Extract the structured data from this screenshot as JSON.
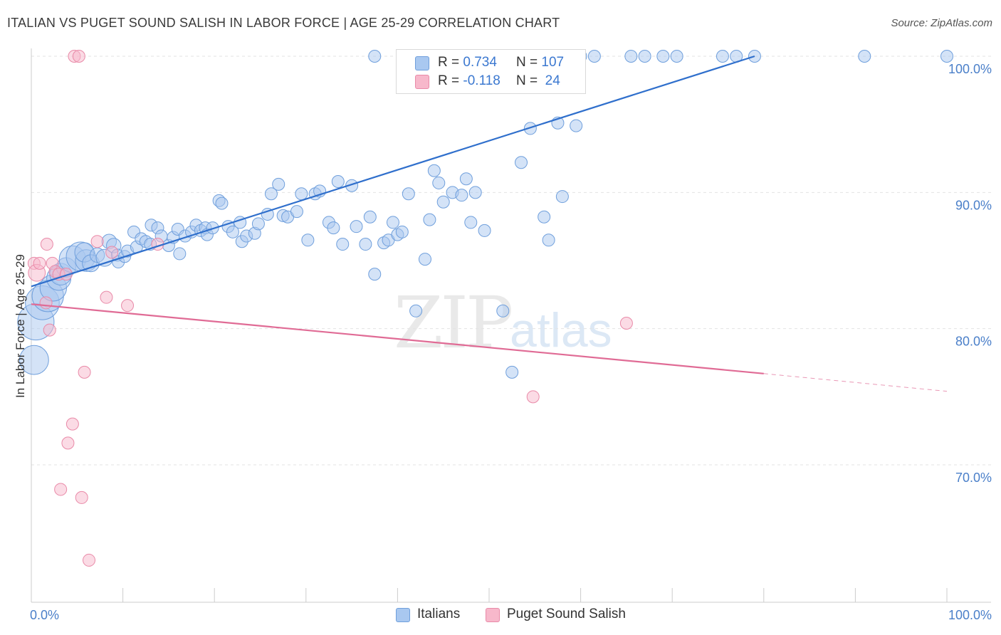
{
  "title": "ITALIAN VS PUGET SOUND SALISH IN LABOR FORCE | AGE 25-29 CORRELATION CHART",
  "source": "Source: ZipAtlas.com",
  "watermark": {
    "zip": "ZIP",
    "atlas": "atlas"
  },
  "colors": {
    "italian_fill": "#a9c8f0",
    "italian_stroke": "#6f9fdc",
    "italian_line": "#2f6fcc",
    "salish_fill": "#f7b8cb",
    "salish_stroke": "#e98aa8",
    "salish_line": "#e06b95",
    "grid": "#e3e3e3",
    "tick_text": "#4a7fc9"
  },
  "legend": {
    "rows": [
      {
        "r_label": "R =",
        "r_value": "0.734",
        "n_label": "N =",
        "n_value": "107"
      },
      {
        "r_label": "R =",
        "r_value": "-0.118",
        "n_label": "N =",
        "n_value": "24"
      }
    ]
  },
  "bottom_legend": [
    "Italians",
    "Puget Sound Salish"
  ],
  "chart_data": {
    "type": "scatter",
    "title": "ITALIAN VS PUGET SOUND SALISH IN LABOR FORCE | AGE 25-29 CORRELATION CHART",
    "xlabel": "",
    "ylabel": "In Labor Force | Age 25-29",
    "xlim": [
      0,
      100
    ],
    "ylim": [
      60.5,
      101.5
    ],
    "x_tick_labels": [
      {
        "value": 0,
        "label": "0.0%"
      },
      {
        "value": 100,
        "label": "100.0%"
      }
    ],
    "y_tick_labels": [
      {
        "value": 70,
        "label": "70.0%"
      },
      {
        "value": 80,
        "label": "80.0%"
      },
      {
        "value": 90,
        "label": "90.0%"
      },
      {
        "value": 100,
        "label": "100.0%"
      }
    ],
    "grid": true,
    "legend_position": "top-center",
    "series": [
      {
        "name": "Italians",
        "R": 0.734,
        "N": 107,
        "trend": {
          "x0": 0,
          "y0": 83.1,
          "x1": 79,
          "y1": 100.0
        },
        "points": [
          [
            0.3,
            77.7,
            24
          ],
          [
            0.5,
            80.5,
            30
          ],
          [
            1.2,
            81.9,
            28
          ],
          [
            1.8,
            82.4,
            26
          ],
          [
            2.4,
            83.0,
            22
          ],
          [
            3.0,
            83.7,
            20
          ],
          [
            3.2,
            84.0,
            18
          ],
          [
            3.8,
            84.5,
            16
          ],
          [
            4.5,
            85.1,
            22
          ],
          [
            5.4,
            85.3,
            24
          ],
          [
            6.0,
            85.0,
            18
          ],
          [
            5.8,
            85.6,
            16
          ],
          [
            6.5,
            84.8,
            14
          ],
          [
            7.2,
            85.4,
            12
          ],
          [
            8.0,
            85.2,
            14
          ],
          [
            8.5,
            86.4,
            12
          ],
          [
            9.0,
            86.1,
            12
          ],
          [
            9.4,
            85.4,
            10
          ],
          [
            9.5,
            84.9,
            10
          ],
          [
            10.2,
            85.3,
            10
          ],
          [
            10.5,
            85.7,
            10
          ],
          [
            11.2,
            87.1,
            10
          ],
          [
            11.5,
            86.0,
            10
          ],
          [
            12.0,
            86.6,
            10
          ],
          [
            12.5,
            86.4,
            10
          ],
          [
            13.0,
            86.2,
            10
          ],
          [
            13.1,
            87.6,
            10
          ],
          [
            13.8,
            87.4,
            10
          ],
          [
            14.2,
            86.8,
            10
          ],
          [
            15.0,
            86.1,
            10
          ],
          [
            15.5,
            86.7,
            10
          ],
          [
            16.0,
            87.3,
            10
          ],
          [
            16.2,
            85.5,
            10
          ],
          [
            16.8,
            86.8,
            10
          ],
          [
            17.5,
            87.1,
            10
          ],
          [
            18.0,
            87.6,
            10
          ],
          [
            18.5,
            87.2,
            10
          ],
          [
            19.0,
            87.4,
            10
          ],
          [
            19.2,
            86.9,
            10
          ],
          [
            19.8,
            87.4,
            10
          ],
          [
            20.5,
            89.4,
            10
          ],
          [
            20.8,
            89.2,
            10
          ],
          [
            21.5,
            87.5,
            10
          ],
          [
            22.0,
            87.1,
            10
          ],
          [
            22.8,
            87.8,
            10
          ],
          [
            23.0,
            86.4,
            10
          ],
          [
            23.5,
            86.8,
            10
          ],
          [
            24.4,
            87.0,
            10
          ],
          [
            24.8,
            87.7,
            10
          ],
          [
            25.8,
            88.4,
            10
          ],
          [
            26.2,
            89.9,
            10
          ],
          [
            27.0,
            90.6,
            10
          ],
          [
            27.5,
            88.3,
            10
          ],
          [
            28.0,
            88.2,
            10
          ],
          [
            29.0,
            88.6,
            10
          ],
          [
            29.5,
            89.9,
            10
          ],
          [
            30.2,
            86.5,
            10
          ],
          [
            31.0,
            89.9,
            10
          ],
          [
            31.5,
            90.1,
            10
          ],
          [
            32.5,
            87.8,
            10
          ],
          [
            33.0,
            87.4,
            10
          ],
          [
            33.5,
            90.8,
            10
          ],
          [
            34.0,
            86.2,
            10
          ],
          [
            35.0,
            90.5,
            10
          ],
          [
            35.5,
            87.5,
            10
          ],
          [
            36.5,
            86.2,
            10
          ],
          [
            37.0,
            88.2,
            10
          ],
          [
            37.5,
            84.0,
            10
          ],
          [
            38.5,
            86.3,
            10
          ],
          [
            39.0,
            86.5,
            10
          ],
          [
            39.5,
            87.8,
            10
          ],
          [
            40.0,
            86.9,
            10
          ],
          [
            40.5,
            87.1,
            10
          ],
          [
            41.2,
            89.9,
            10
          ],
          [
            42.0,
            81.3,
            10
          ],
          [
            43.0,
            85.1,
            10
          ],
          [
            43.5,
            88.0,
            10
          ],
          [
            44.0,
            91.6,
            10
          ],
          [
            44.5,
            90.7,
            10
          ],
          [
            45.0,
            89.3,
            10
          ],
          [
            46.0,
            90.0,
            10
          ],
          [
            47.0,
            89.8,
            10
          ],
          [
            47.5,
            91.0,
            10
          ],
          [
            48.0,
            87.8,
            10
          ],
          [
            48.5,
            90.0,
            10
          ],
          [
            49.5,
            87.2,
            10
          ],
          [
            50.0,
            100.0,
            10
          ],
          [
            51.0,
            100.0,
            10
          ],
          [
            52.0,
            100.0,
            10
          ],
          [
            53.0,
            100.0,
            10
          ],
          [
            53.5,
            92.2,
            10
          ],
          [
            54.5,
            94.7,
            10
          ],
          [
            56.0,
            88.2,
            10
          ],
          [
            56.5,
            86.5,
            10
          ],
          [
            57.5,
            95.1,
            10
          ],
          [
            58.0,
            89.7,
            10
          ],
          [
            59.5,
            94.9,
            10
          ],
          [
            60.0,
            100.0,
            10
          ],
          [
            65.5,
            100.0,
            10
          ],
          [
            67.0,
            100.0,
            10
          ],
          [
            69.0,
            100.0,
            10
          ],
          [
            51.5,
            81.3,
            10
          ],
          [
            52.5,
            76.8,
            10
          ],
          [
            37.5,
            100.0,
            10
          ],
          [
            55.0,
            100.0,
            10
          ],
          [
            61.5,
            100.0,
            10
          ],
          [
            70.5,
            100.0,
            10
          ],
          [
            75.5,
            100.0,
            10
          ],
          [
            91.0,
            100.0,
            10
          ],
          [
            100.0,
            100.0,
            10
          ],
          [
            77.0,
            100.0,
            10
          ],
          [
            79.0,
            100.0,
            10
          ]
        ]
      },
      {
        "name": "Puget Sound Salish",
        "R": -0.118,
        "N": 24,
        "trend": {
          "x0": 0,
          "y0": 81.8,
          "x1": 80,
          "y1": 76.7
        },
        "trend_dashed": {
          "x0": 80,
          "y0": 76.7,
          "x1": 100,
          "y1": 75.4
        },
        "points": [
          [
            0.3,
            84.8,
            10
          ],
          [
            0.6,
            84.1,
            14
          ],
          [
            0.9,
            84.8,
            10
          ],
          [
            1.6,
            81.9,
            10
          ],
          [
            1.7,
            86.2,
            10
          ],
          [
            2.0,
            79.9,
            10
          ],
          [
            2.3,
            84.8,
            10
          ],
          [
            2.6,
            84.2,
            10
          ],
          [
            3.0,
            84.0,
            10
          ],
          [
            3.2,
            68.2,
            10
          ],
          [
            3.8,
            84.0,
            10
          ],
          [
            4.0,
            71.6,
            10
          ],
          [
            4.5,
            73.0,
            10
          ],
          [
            4.7,
            100.0,
            10
          ],
          [
            5.2,
            100.0,
            10
          ],
          [
            5.5,
            67.6,
            10
          ],
          [
            5.8,
            76.8,
            10
          ],
          [
            6.3,
            63.0,
            10
          ],
          [
            7.2,
            86.4,
            10
          ],
          [
            8.2,
            82.3,
            10
          ],
          [
            8.8,
            85.6,
            10
          ],
          [
            10.5,
            81.7,
            10
          ],
          [
            13.8,
            86.2,
            10
          ],
          [
            54.8,
            75.0,
            10
          ],
          [
            65.0,
            80.4,
            10
          ]
        ]
      }
    ]
  }
}
